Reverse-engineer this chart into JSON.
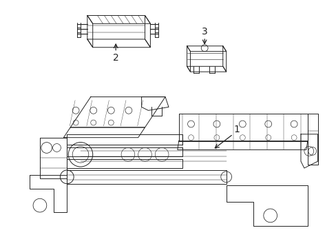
{
  "background_color": "#ffffff",
  "line_color": "#222222",
  "line_width": 0.7,
  "label_1": "1",
  "label_2": "2",
  "label_3": "3",
  "font_size_labels": 10,
  "figsize": [
    4.89,
    3.6
  ],
  "dpi": 100
}
